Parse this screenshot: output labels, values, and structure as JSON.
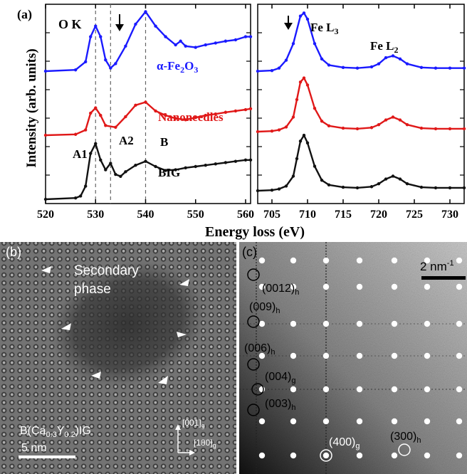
{
  "colors": {
    "blue": "#1a1aff",
    "red": "#e01818",
    "black": "#111111"
  },
  "panel_a": {
    "label": "(a)",
    "ylabel": "Intensity (arb. units)",
    "xlabel": "Energy loss (eV)",
    "left_edge": "O K",
    "right_edges": [
      "Fe L3",
      "Fe L2"
    ],
    "peak_labels": [
      "A1",
      "A2",
      "B"
    ],
    "series_labels": [
      "α-Fe2O3",
      "Nanoneedles",
      "BIG"
    ]
  },
  "panel_b": {
    "label": "(b)",
    "phase_label_line1": "Secondary",
    "phase_label_line2": "phase",
    "sample_label": "B(Ca0.3Y0.2)IG",
    "scale_label": "5 nm",
    "axis_001": "[001]g",
    "axis_100": "[100]g"
  },
  "panel_c": {
    "label": "(c)",
    "scale_label": "2 nm-1",
    "spots": [
      "(0012)h",
      "(009)h",
      "(006)h",
      "(004)g",
      "(003)h",
      "(400)g",
      "(300)h"
    ]
  },
  "chart_data": [
    {
      "type": "line",
      "title": "O K",
      "xlabel": "Energy loss (eV)",
      "ylabel": "Intensity (arb. units)",
      "xlim": [
        520,
        561
      ],
      "xticks": [
        520,
        530,
        540,
        550,
        560
      ],
      "vlines": [
        530,
        533,
        540
      ],
      "annotations": [
        "A1",
        "A2",
        "B",
        "α-Fe2O3",
        "Nanoneedles",
        "BIG"
      ],
      "series": [
        {
          "name": "α-Fe2O3",
          "color": "#1a1aff",
          "x": [
            520,
            526,
            528,
            529,
            530,
            531,
            532,
            533,
            534,
            536,
            538,
            540,
            542,
            544,
            546,
            547,
            548,
            550,
            552,
            554,
            556,
            558,
            560,
            561
          ],
          "values": [
            0.0,
            0.02,
            0.15,
            0.55,
            0.72,
            0.55,
            0.18,
            0.05,
            0.12,
            0.4,
            0.75,
            0.95,
            0.72,
            0.55,
            0.42,
            0.48,
            0.4,
            0.38,
            0.42,
            0.45,
            0.48,
            0.5,
            0.55,
            0.55
          ]
        },
        {
          "name": "Nanoneedles",
          "color": "#e01818",
          "x": [
            520,
            526,
            528,
            529,
            530,
            531,
            532,
            534,
            536,
            538,
            540,
            542,
            544,
            546,
            548,
            550,
            552,
            554,
            556,
            558,
            560,
            561
          ],
          "values": [
            0.0,
            0.02,
            0.12,
            0.5,
            0.62,
            0.45,
            0.22,
            0.18,
            0.42,
            0.68,
            0.75,
            0.55,
            0.45,
            0.38,
            0.35,
            0.4,
            0.45,
            0.48,
            0.52,
            0.55,
            0.58,
            0.6
          ]
        },
        {
          "name": "BIG",
          "color": "#111111",
          "x": [
            520,
            526,
            527,
            528,
            529,
            530,
            531,
            532,
            533,
            534,
            535,
            536,
            538,
            540,
            542,
            544,
            546,
            548,
            550,
            552,
            554,
            556,
            558,
            560,
            561
          ],
          "values": [
            0.0,
            0.02,
            0.05,
            0.2,
            0.7,
            0.85,
            0.6,
            0.45,
            0.55,
            0.38,
            0.35,
            0.42,
            0.52,
            0.58,
            0.5,
            0.44,
            0.45,
            0.48,
            0.5,
            0.52,
            0.54,
            0.56,
            0.58,
            0.6,
            0.6
          ]
        }
      ]
    },
    {
      "type": "line",
      "title": "Fe L3 / Fe L2",
      "xlabel": "Energy loss (eV)",
      "xlim": [
        703,
        732
      ],
      "xticks": [
        705,
        710,
        715,
        720,
        725,
        730
      ],
      "annotations": [
        "Fe L3",
        "Fe L2"
      ],
      "series": [
        {
          "name": "α-Fe2O3",
          "color": "#1a1aff",
          "x": [
            703,
            705,
            706,
            707,
            708,
            709,
            709.5,
            710,
            711,
            712,
            713,
            715,
            717,
            719,
            720,
            721,
            722,
            723,
            724,
            726,
            728,
            730,
            732
          ],
          "values": [
            0.0,
            0.01,
            0.05,
            0.18,
            0.45,
            0.9,
            0.95,
            0.85,
            0.45,
            0.2,
            0.1,
            0.06,
            0.05,
            0.07,
            0.12,
            0.22,
            0.25,
            0.2,
            0.12,
            0.06,
            0.05,
            0.05,
            0.05
          ]
        },
        {
          "name": "Nanoneedles",
          "color": "#e01818",
          "x": [
            703,
            705,
            706,
            707,
            708,
            708.5,
            709,
            709.5,
            710,
            711,
            712,
            713,
            715,
            717,
            719,
            720,
            721,
            722,
            723,
            724,
            726,
            728,
            730,
            732
          ],
          "values": [
            0.0,
            0.01,
            0.03,
            0.08,
            0.25,
            0.55,
            0.85,
            0.92,
            0.8,
            0.4,
            0.18,
            0.1,
            0.06,
            0.05,
            0.07,
            0.12,
            0.2,
            0.25,
            0.2,
            0.12,
            0.06,
            0.05,
            0.05,
            0.05
          ]
        },
        {
          "name": "BIG",
          "color": "#111111",
          "x": [
            703,
            705,
            706,
            707,
            708,
            708.5,
            709,
            709.5,
            710,
            711,
            712,
            713,
            715,
            717,
            719,
            720,
            721,
            722,
            723,
            724,
            726,
            728,
            730,
            732
          ],
          "values": [
            0.0,
            0.01,
            0.03,
            0.08,
            0.25,
            0.55,
            0.85,
            0.95,
            0.82,
            0.42,
            0.18,
            0.1,
            0.06,
            0.05,
            0.07,
            0.12,
            0.2,
            0.25,
            0.2,
            0.12,
            0.06,
            0.05,
            0.05,
            0.05
          ]
        }
      ]
    }
  ]
}
